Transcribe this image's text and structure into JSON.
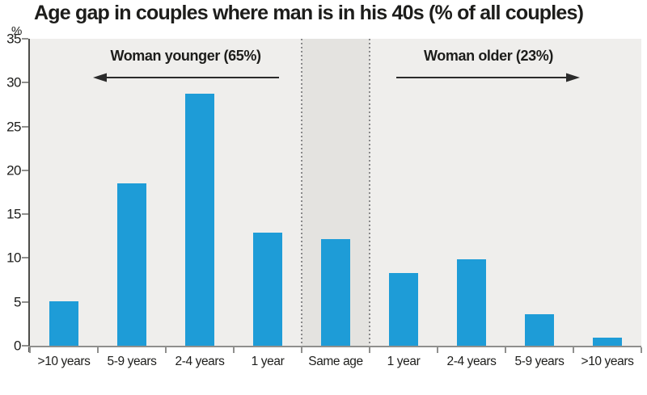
{
  "chart_data": {
    "type": "bar",
    "title": "Age gap in couples where man is in his 40s (% of all couples)",
    "xlabel": "",
    "ylabel": "%",
    "categories": [
      ">10 years",
      "5-9 years",
      "2-4 years",
      "1 year",
      "Same age",
      "1 year",
      "2-4 years",
      "5-9 years",
      ">10 years"
    ],
    "values": [
      5.1,
      18.5,
      28.7,
      12.9,
      12.2,
      8.3,
      9.9,
      3.6,
      0.9
    ],
    "ylim": [
      0,
      35
    ],
    "yticks": [
      35,
      30,
      25,
      20,
      15,
      10,
      5,
      0
    ],
    "grid": false,
    "legend": false,
    "bar_color": "#1e9cd7",
    "plot_bg": "#efeeec",
    "band": {
      "category_index": 4,
      "color": "#e4e3e0",
      "label": "Same age"
    },
    "annotations": [
      {
        "text": "Woman younger (65%)",
        "arrow_direction": "left",
        "span_categories": [
          0,
          3
        ],
        "share_pct": 65
      },
      {
        "text": "Woman older (23%)",
        "arrow_direction": "right",
        "span_categories": [
          5,
          8
        ],
        "share_pct": 23
      }
    ],
    "arrow_color": "#2b2b2b"
  }
}
